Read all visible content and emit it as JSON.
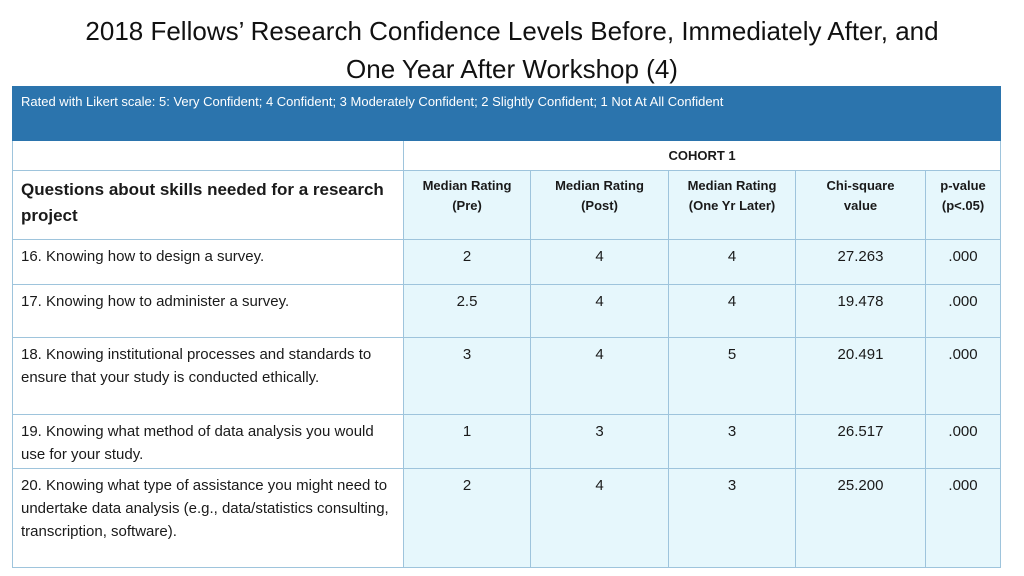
{
  "slide": {
    "title_line1": "2018 Fellows’ Research Confidence Levels Before, Immediately After, and",
    "title_line2": "One Year After  Workshop (4)"
  },
  "table": {
    "note": "Rated with Likert scale: 5: Very Confident; 4 Confident; 3 Moderately Confident; 2 Slightly Confident; 1 Not At All Confident",
    "cohort_label": "COHORT 1",
    "question_header": "Questions about skills needed for a research project",
    "columns": [
      {
        "line1": "Median Rating",
        "line2": "(Pre)"
      },
      {
        "line1": "Median Rating",
        "line2": "(Post)"
      },
      {
        "line1": "Median Rating",
        "line2": "(One Yr Later)"
      },
      {
        "line1": "Chi-square",
        "line2": "value"
      },
      {
        "line1": "p-value",
        "line2": "(p<.05)"
      }
    ],
    "rows": [
      {
        "question": "16. Knowing how to design a survey.",
        "values": [
          "2",
          "4",
          "4",
          "27.263",
          ".000"
        ]
      },
      {
        "question": "17. Knowing how to administer a survey.",
        "values": [
          "2.5",
          "4",
          "4",
          "19.478",
          ".000"
        ]
      },
      {
        "question": "18. Knowing institutional processes and standards to ensure that your study is conducted ethically.",
        "values": [
          "3",
          "4",
          "5",
          "20.491",
          ".000"
        ]
      },
      {
        "question": "19. Knowing what method of data analysis you would use for your study.",
        "values": [
          "1",
          "3",
          "3",
          "26.517",
          ".000"
        ]
      },
      {
        "question": "20. Knowing what type of assistance you might need to undertake data analysis (e.g., data/statistics consulting, transcription, software).",
        "values": [
          "2",
          "4",
          "3",
          "25.200",
          ".000"
        ]
      }
    ]
  }
}
